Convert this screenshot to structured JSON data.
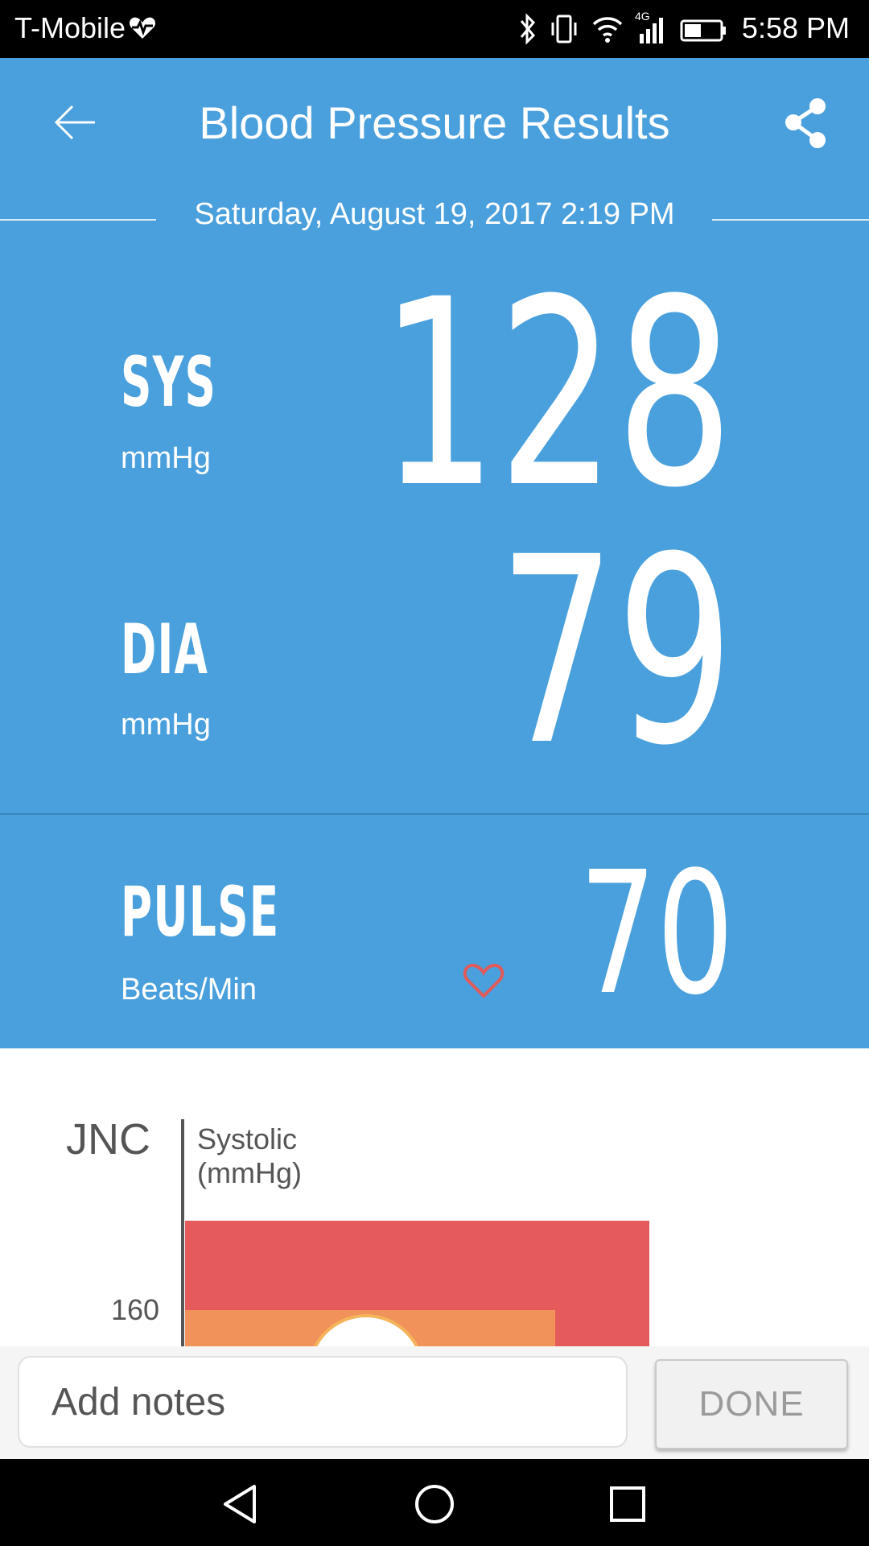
{
  "status_bar": {
    "carrier": "T-Mobile",
    "time": "5:58 PM",
    "network_label": "4G",
    "icons": [
      "heart-monitor-icon",
      "bluetooth-icon",
      "vibrate-icon",
      "wifi-icon",
      "cellular-signal-icon",
      "battery-icon"
    ]
  },
  "header": {
    "title": "Blood Pressure Results",
    "date": "Saturday, August 19, 2017 2:19 PM"
  },
  "readings": {
    "sys": {
      "label": "SYS",
      "unit": "mmHg",
      "value": "128"
    },
    "dia": {
      "label": "DIA",
      "unit": "mmHg",
      "value": "79"
    },
    "pulse": {
      "label": "PULSE",
      "unit": "Beats/Min",
      "value": "70"
    }
  },
  "chart": {
    "classification": "JNC",
    "y_label_line1": "Systolic",
    "y_label_line2": "(mmHg)",
    "tick_160": "160"
  },
  "footer": {
    "notes_placeholder": "Add notes",
    "done_label": "DONE"
  },
  "colors": {
    "primary_blue": "#4aa0dd",
    "zone_red": "#e55b5b",
    "zone_orange": "#f0925a",
    "heart_red": "#e05a5a"
  }
}
